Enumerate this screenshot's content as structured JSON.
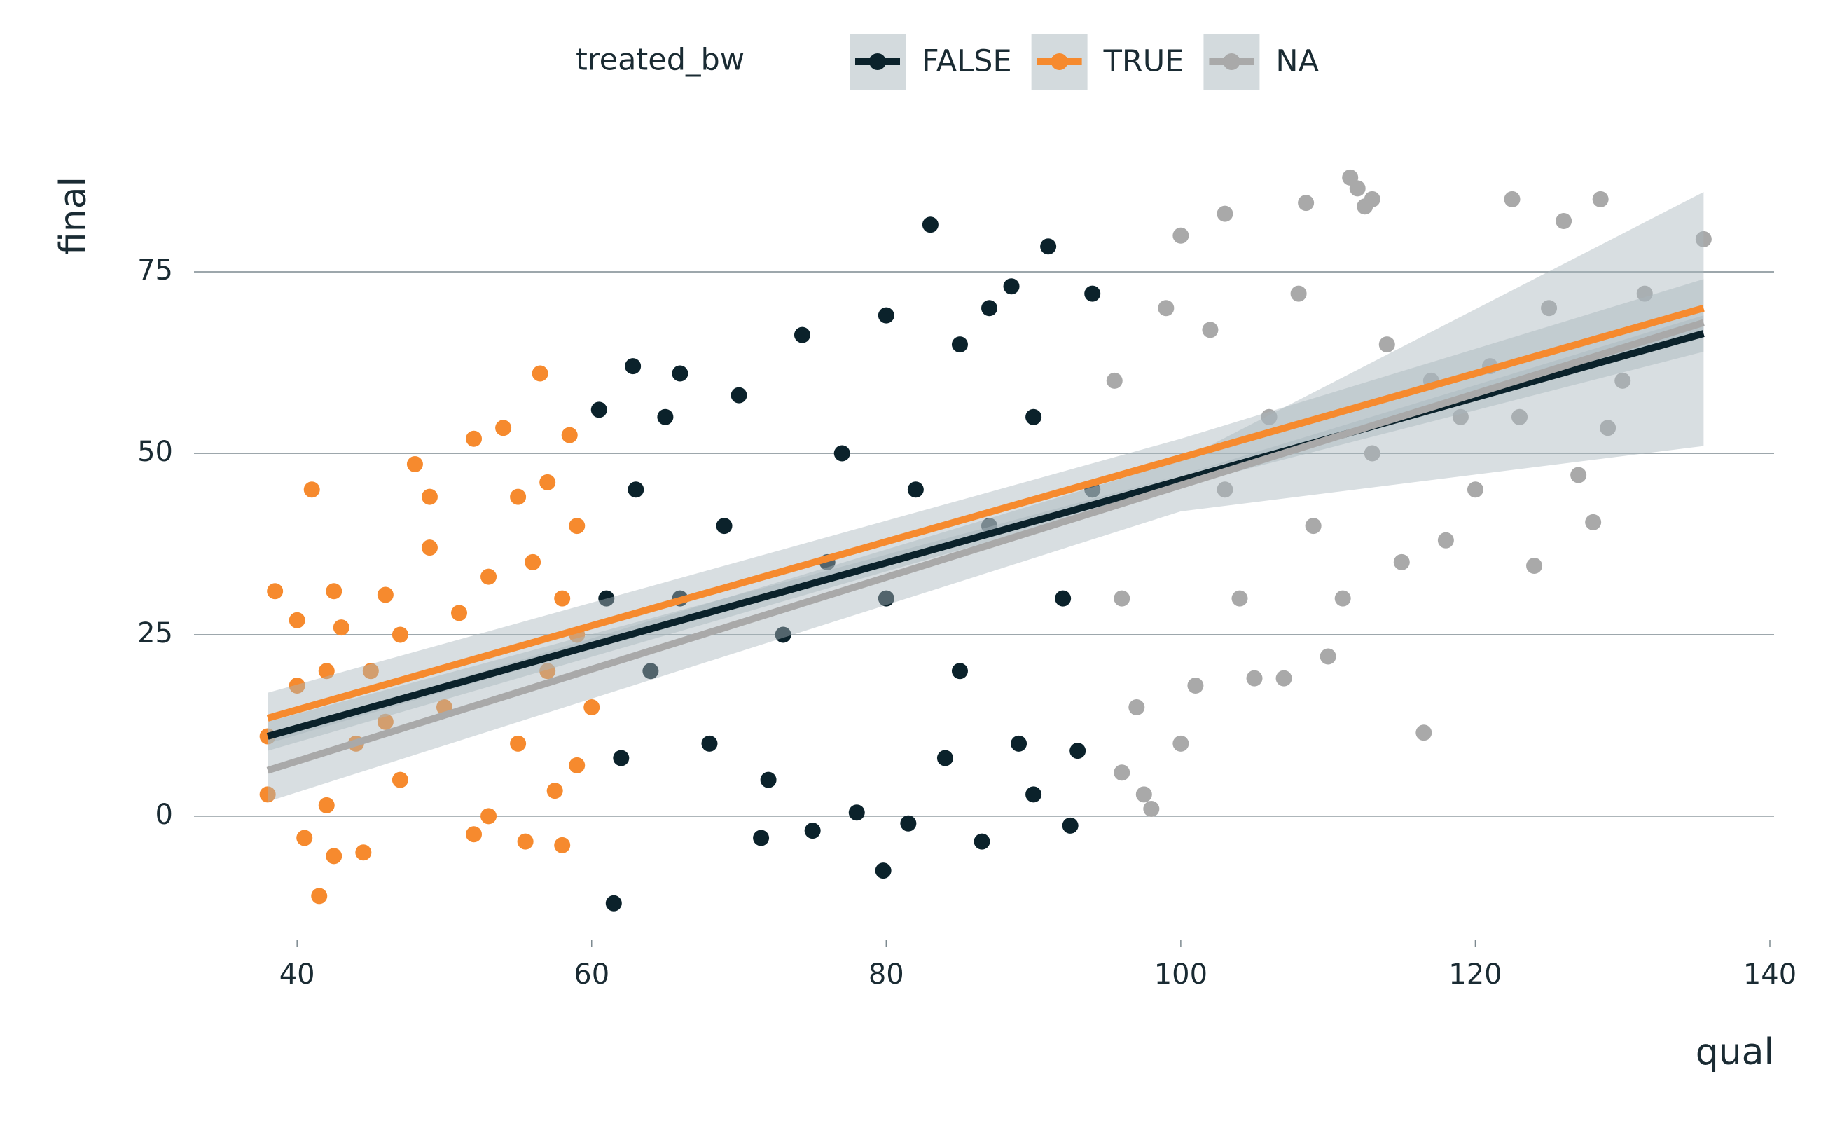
{
  "chart_data": {
    "type": "scatter",
    "x_label": "qual",
    "y_label": "final",
    "legend_title": "treated_bw",
    "xlim": [
      33,
      140
    ],
    "ylim": [
      -17,
      89
    ],
    "xticks": [
      40,
      60,
      80,
      100,
      120,
      140
    ],
    "yticks": [
      0,
      25,
      50,
      75
    ],
    "grid": "y",
    "legend_position": "top",
    "band_color": "#a9b6bc",
    "series": [
      {
        "name": "FALSE",
        "color": "#0b222b",
        "x": [
          83,
          91,
          61.5,
          79.8,
          62.8,
          66,
          92.5,
          86.5,
          81.5,
          71.5,
          75,
          90,
          60.5,
          74.3,
          80,
          88.5,
          94,
          87,
          65,
          70,
          85,
          68,
          72,
          78,
          84,
          89,
          93,
          63,
          64,
          66,
          69,
          73,
          76,
          77,
          80,
          82,
          85,
          87,
          90,
          92,
          94,
          61,
          62
        ],
        "y": [
          81.5,
          78.5,
          -12,
          -7.5,
          62,
          61,
          -1.3,
          -3.5,
          -1,
          -3,
          -2,
          3,
          56,
          66.3,
          69,
          73,
          72,
          70,
          55,
          58,
          65,
          10,
          5,
          0.5,
          8,
          10,
          9,
          45,
          20,
          30,
          40,
          25,
          35,
          50,
          30,
          45,
          20,
          40,
          55,
          30,
          45,
          30,
          8
        ],
        "fit": {
          "x": [
            38,
            100,
            135.5
          ],
          "y": [
            11,
            46.3,
            66.5
          ],
          "lower": [
            9,
            45.5,
            64
          ],
          "upper": [
            13,
            47,
            69
          ]
        }
      },
      {
        "name": "TRUE",
        "color": "#f68a2e",
        "x": [
          41,
          41.5,
          38,
          38,
          42.5,
          40.5,
          44.5,
          42,
          38.5,
          40,
          42.5,
          43,
          46,
          48,
          49,
          49,
          52,
          54,
          56.5,
          58.5,
          55,
          57,
          59,
          58,
          57,
          55,
          53,
          52,
          55.5,
          58,
          59,
          50,
          47,
          45,
          44,
          47,
          40,
          42,
          56,
          59,
          60,
          53,
          51,
          46,
          57.5
        ],
        "y": [
          45,
          -11,
          11,
          3,
          -5.5,
          -3,
          -5,
          1.5,
          31,
          27,
          31,
          26,
          30.5,
          48.5,
          44,
          37,
          52,
          53.5,
          61,
          52.5,
          44,
          46,
          40,
          30,
          20,
          10,
          0,
          -2.5,
          -3.5,
          -4,
          7,
          15,
          25,
          20,
          10,
          5,
          18,
          20,
          35,
          25,
          15,
          33,
          28,
          13,
          3.5
        ],
        "fit": {
          "x": [
            38,
            100,
            135.5
          ],
          "y": [
            13.5,
            49.4,
            70
          ],
          "lower": [
            10,
            47,
            66
          ],
          "upper": [
            17,
            52,
            74
          ]
        }
      },
      {
        "name": "NA",
        "color": "#a9a9a9",
        "x": [
          111.5,
          112,
          112.5,
          113,
          122.5,
          128.5,
          108.5,
          103,
          100,
          135.5,
          126,
          131.5,
          128,
          116.5,
          98,
          96,
          97.5,
          124,
          101,
          105,
          107,
          110,
          115,
          120,
          118,
          104,
          97,
          95.5,
          99,
          102,
          106,
          108,
          114,
          117,
          121,
          125,
          130,
          127,
          109,
          113,
          119,
          96,
          100,
          123,
          129,
          111,
          103
        ],
        "y": [
          88,
          86.5,
          84,
          85,
          85,
          85,
          84.5,
          83,
          80,
          79.5,
          82,
          72,
          40.5,
          11.5,
          1,
          6,
          3,
          34.5,
          18,
          19,
          19,
          22,
          35,
          45,
          38,
          30,
          15,
          60,
          70,
          67,
          55,
          72,
          65,
          60,
          62,
          70,
          60,
          47,
          40,
          50,
          55,
          30,
          10,
          55,
          53.5,
          30,
          45
        ],
        "fit": {
          "x": [
            38,
            100,
            135.5
          ],
          "y": [
            6.3,
            45.6,
            68
          ],
          "lower": [
            2,
            42,
            51
          ],
          "upper": [
            11,
            49,
            86
          ]
        }
      }
    ]
  }
}
